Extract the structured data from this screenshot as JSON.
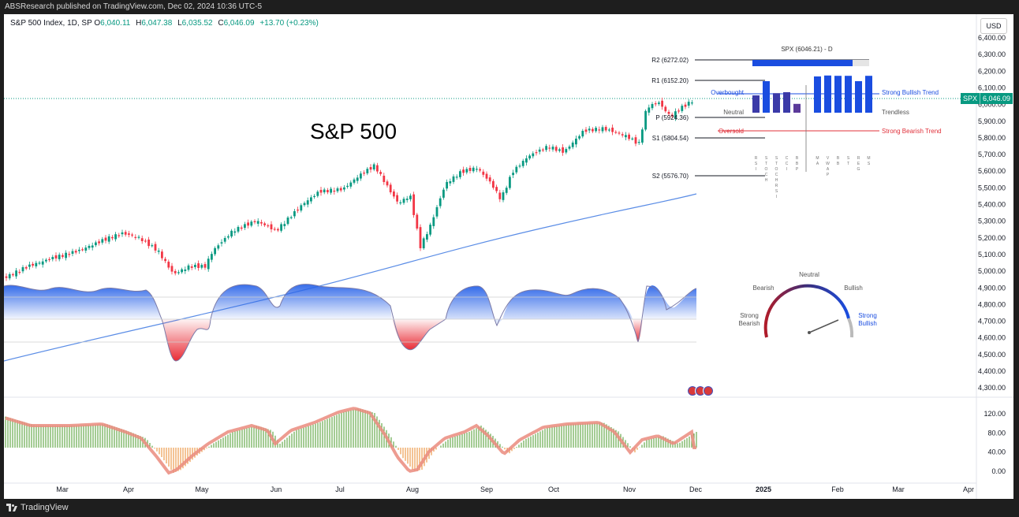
{
  "topbar": {
    "text": "ABSResearch published on TradingView.com, Dec 02, 2024 10:36 UTC-5"
  },
  "legend": {
    "name": "S&P 500 Index, 1D, SP",
    "o_label": "O",
    "o_value": "6,040.11",
    "h_label": "H",
    "h_value": "6,047.38",
    "l_label": "L",
    "l_value": "6,035.52",
    "c_label": "C",
    "c_value": "6,046.09",
    "change": "+13.70 (+0.23%)"
  },
  "currency": "USD",
  "annotation": {
    "title": "S&P 500"
  },
  "price_tag": {
    "symbol": "SPX",
    "value": "6,046.09"
  },
  "price_axis": [
    "6,400.00",
    "6,300.00",
    "6,200.00",
    "6,100.00",
    "6,000.00",
    "5,900.00",
    "5,800.00",
    "5,700.00",
    "5,600.00",
    "5,500.00",
    "5,400.00",
    "5,300.00",
    "5,200.00",
    "5,100.00",
    "5,000.00",
    "4,900.00",
    "4,800.00",
    "4,700.00",
    "4,600.00",
    "4,500.00",
    "4,400.00",
    "4,300.00"
  ],
  "osc_axis": [
    "120.00",
    "80.00",
    "40.00",
    "0.00"
  ],
  "time_axis": [
    "Mar",
    "Apr",
    "May",
    "Jun",
    "Jul",
    "Aug",
    "Sep",
    "Oct",
    "Nov",
    "Dec",
    "2025",
    "Feb",
    "Mar",
    "Apr"
  ],
  "pivots": {
    "r2": "R2 (6272.02)",
    "r1": "R1 (6152.20)",
    "p": "P (5924.36)",
    "s1": "S1 (5804.54)",
    "s2": "S2 (5576.70)"
  },
  "panel": {
    "title": "SPX (6046.21) - D",
    "overbought": "Overbought",
    "neutral": "Neutral",
    "oversold": "Oversold",
    "strong_bullish": "Strong Bullish Trend",
    "trendless": "Trendless",
    "strong_bearish": "Strong Bearish Trend",
    "bar_values": [
      0.55,
      1.0,
      0.62,
      0.65,
      0.28,
      1.15,
      1.18,
      1.17,
      1.17,
      1.0,
      1.17
    ],
    "bar_labels": [
      "R S I",
      "S T O C H",
      "S T O C H R S I",
      "C C I",
      "B B P",
      "M A",
      "V W A P",
      "B B",
      "S T",
      "R E G",
      "M S"
    ]
  },
  "gauge": {
    "neutral": "Neutral",
    "bearish": "Bearish",
    "bullish": "Bullish",
    "strong_bearish_1": "Strong",
    "strong_bearish_2": "Bearish",
    "strong_bullish_1": "Strong",
    "strong_bullish_2": "Bullish",
    "needle_value": 0.88
  },
  "colors": {
    "up": "#089981",
    "down": "#f23645",
    "ma": "#5b8de6",
    "accent": "#1a4de0",
    "bearish": "#e0303a"
  },
  "footer": {
    "brand": "TradingView"
  }
}
